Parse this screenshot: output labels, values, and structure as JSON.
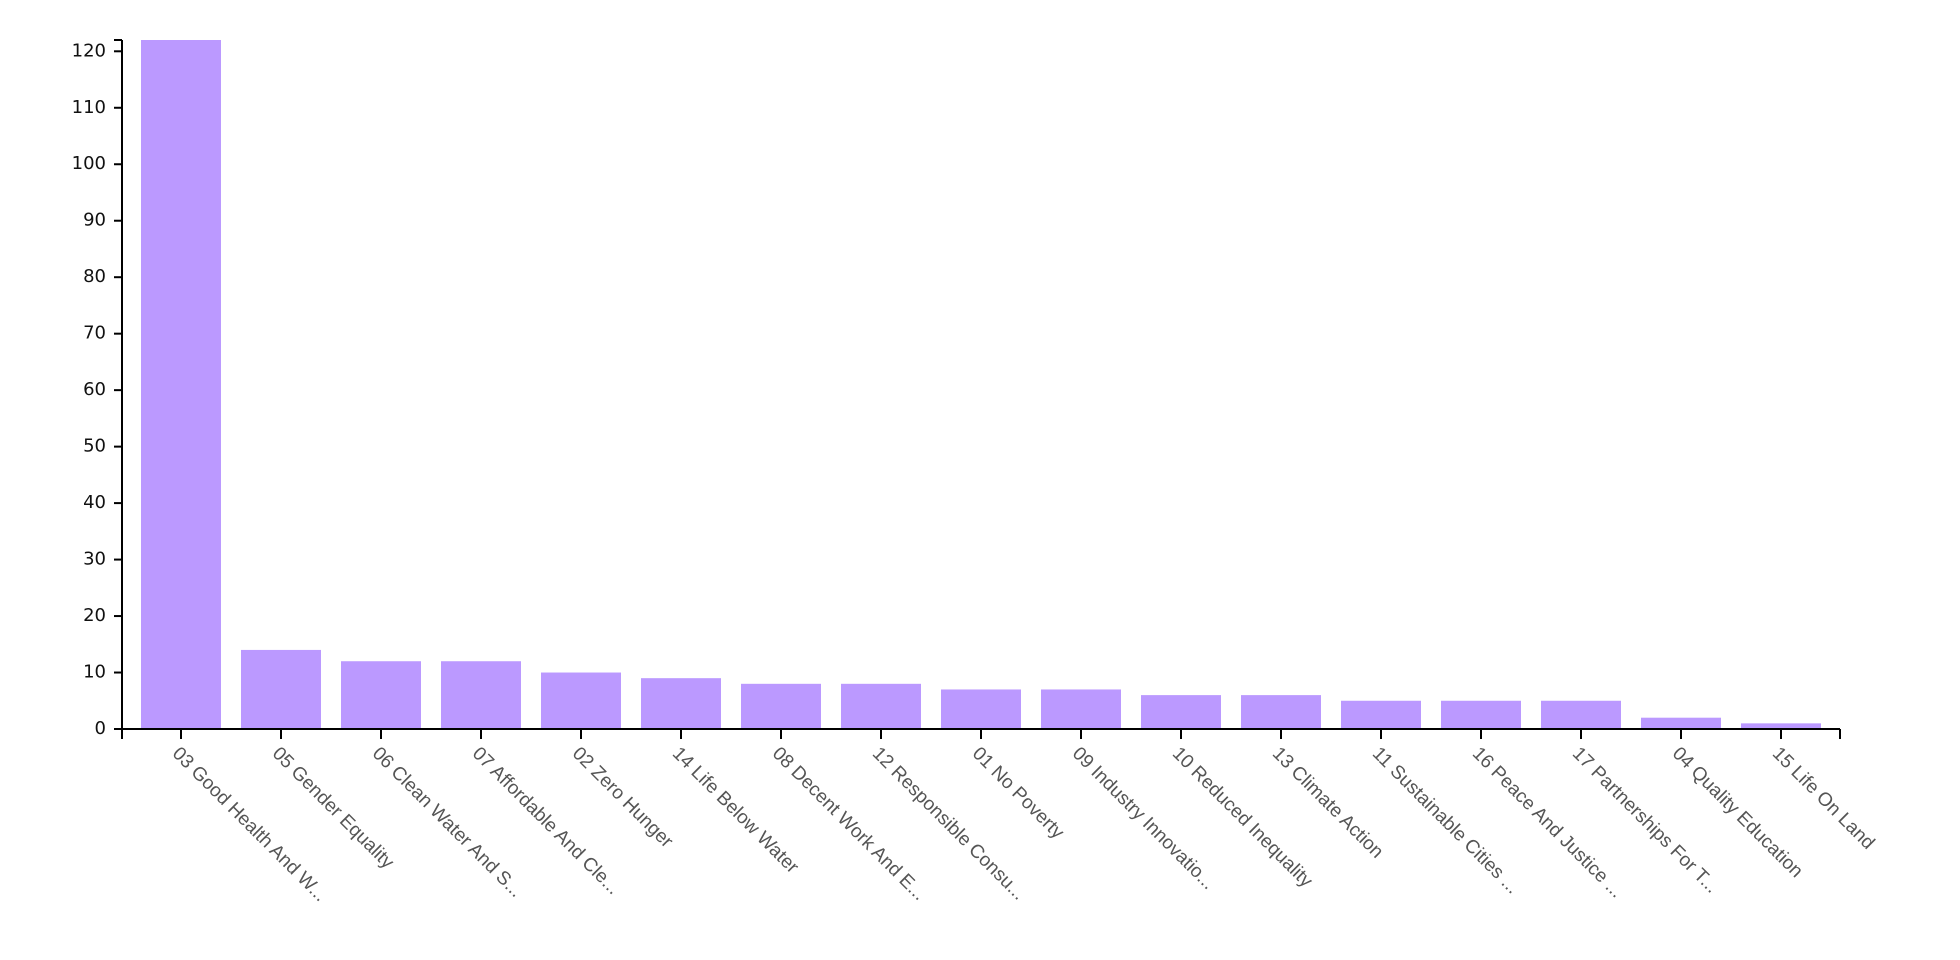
{
  "chart_data": {
    "type": "bar",
    "title": "",
    "xlabel": "",
    "ylabel": "",
    "ylim": [
      0,
      122
    ],
    "yticks": [
      0,
      10,
      20,
      30,
      40,
      50,
      60,
      70,
      80,
      90,
      100,
      110,
      120
    ],
    "grid": false,
    "bar_color": "#bb99ff",
    "categories": [
      "03 Good Health And W...",
      "05 Gender Equality",
      "06 Clean Water And S...",
      "07 Affordable And Cle...",
      "02 Zero Hunger",
      "14 Life Below Water",
      "08 Decent Work And E...",
      "12 Responsible Consu...",
      "01 No Poverty",
      "09 Industry Innovatio...",
      "10 Reduced Inequality",
      "13 Climate Action",
      "11 Sustainable Cities ...",
      "16 Peace And Justice ...",
      "17 Partnerships For T...",
      "04 Quality Education",
      "15 Life On Land"
    ],
    "values": [
      122,
      14,
      12,
      12,
      10,
      9,
      8,
      8,
      7,
      7,
      6,
      6,
      5,
      5,
      5,
      2,
      1
    ]
  }
}
